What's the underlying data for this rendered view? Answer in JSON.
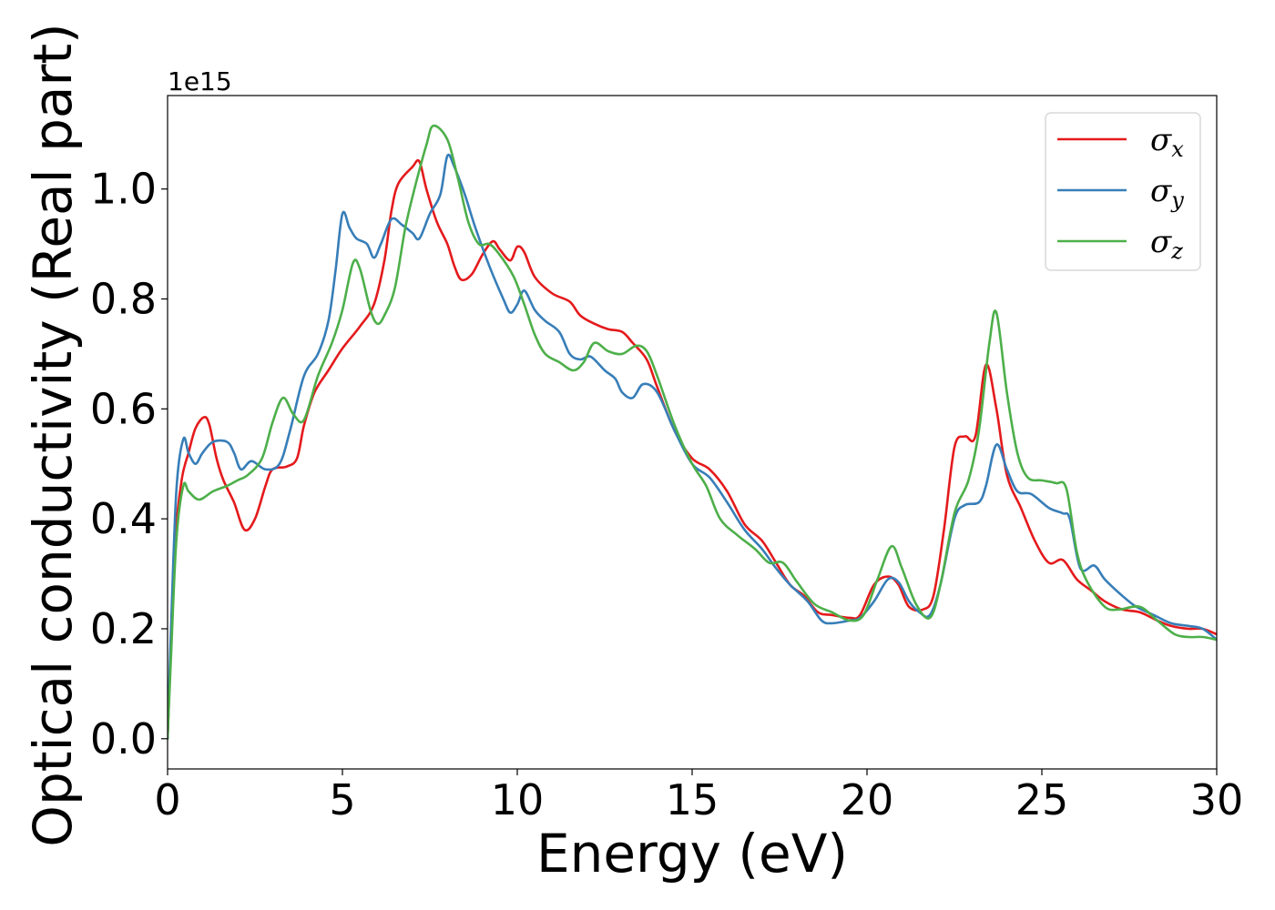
{
  "chart_data": {
    "type": "line",
    "title": "",
    "xlabel": "Energy (eV)",
    "ylabel": "Optical conductivity (Real part)",
    "y_offset_label": "1e15",
    "xlim": [
      0,
      30
    ],
    "ylim": [
      -0.055,
      1.17
    ],
    "x_ticks": [
      0,
      5,
      10,
      15,
      20,
      25,
      30
    ],
    "x_tick_labels": [
      "0",
      "5",
      "10",
      "15",
      "20",
      "25",
      "30"
    ],
    "y_ticks": [
      0.0,
      0.2,
      0.4,
      0.6,
      0.8,
      1.0
    ],
    "y_tick_labels": [
      "0.0",
      "0.2",
      "0.4",
      "0.6",
      "0.8",
      "1.0"
    ],
    "grid": false,
    "legend_position": "top-right",
    "series": [
      {
        "name": "σx",
        "symbol": "σ",
        "subscript": "x",
        "color": "#e41a1c",
        "points": [
          [
            0,
            0
          ],
          [
            0.1,
            0.18
          ],
          [
            0.2,
            0.35
          ],
          [
            0.4,
            0.47
          ],
          [
            0.6,
            0.52
          ],
          [
            0.8,
            0.565
          ],
          [
            1.05,
            0.585
          ],
          [
            1.2,
            0.57
          ],
          [
            1.4,
            0.51
          ],
          [
            1.6,
            0.47
          ],
          [
            1.9,
            0.43
          ],
          [
            2.2,
            0.38
          ],
          [
            2.5,
            0.4
          ],
          [
            2.8,
            0.46
          ],
          [
            3.0,
            0.49
          ],
          [
            3.4,
            0.495
          ],
          [
            3.7,
            0.51
          ],
          [
            3.9,
            0.57
          ],
          [
            4.2,
            0.63
          ],
          [
            4.6,
            0.67
          ],
          [
            5.0,
            0.71
          ],
          [
            5.5,
            0.75
          ],
          [
            5.9,
            0.79
          ],
          [
            6.2,
            0.87
          ],
          [
            6.4,
            0.96
          ],
          [
            6.6,
            1.01
          ],
          [
            7.0,
            1.04
          ],
          [
            7.2,
            1.05
          ],
          [
            7.4,
            1.0
          ],
          [
            7.7,
            0.94
          ],
          [
            8.0,
            0.9
          ],
          [
            8.2,
            0.86
          ],
          [
            8.4,
            0.835
          ],
          [
            8.7,
            0.845
          ],
          [
            9.0,
            0.88
          ],
          [
            9.3,
            0.905
          ],
          [
            9.5,
            0.89
          ],
          [
            9.8,
            0.87
          ],
          [
            10.0,
            0.895
          ],
          [
            10.2,
            0.885
          ],
          [
            10.5,
            0.84
          ],
          [
            11.0,
            0.81
          ],
          [
            11.5,
            0.795
          ],
          [
            11.8,
            0.77
          ],
          [
            12.2,
            0.755
          ],
          [
            12.6,
            0.745
          ],
          [
            13.0,
            0.74
          ],
          [
            13.3,
            0.72
          ],
          [
            13.7,
            0.69
          ],
          [
            14.0,
            0.64
          ],
          [
            14.5,
            0.56
          ],
          [
            15.0,
            0.51
          ],
          [
            15.5,
            0.49
          ],
          [
            16.0,
            0.45
          ],
          [
            16.5,
            0.39
          ],
          [
            17.0,
            0.36
          ],
          [
            17.4,
            0.32
          ],
          [
            17.8,
            0.28
          ],
          [
            18.2,
            0.26
          ],
          [
            18.6,
            0.23
          ],
          [
            19.0,
            0.225
          ],
          [
            19.5,
            0.22
          ],
          [
            19.8,
            0.225
          ],
          [
            20.2,
            0.28
          ],
          [
            20.6,
            0.295
          ],
          [
            20.9,
            0.28
          ],
          [
            21.2,
            0.24
          ],
          [
            21.6,
            0.235
          ],
          [
            21.9,
            0.26
          ],
          [
            22.2,
            0.38
          ],
          [
            22.5,
            0.53
          ],
          [
            22.8,
            0.55
          ],
          [
            23.1,
            0.55
          ],
          [
            23.4,
            0.68
          ],
          [
            23.7,
            0.6
          ],
          [
            24.0,
            0.48
          ],
          [
            24.4,
            0.42
          ],
          [
            24.8,
            0.36
          ],
          [
            25.2,
            0.32
          ],
          [
            25.6,
            0.325
          ],
          [
            26.0,
            0.29
          ],
          [
            26.4,
            0.27
          ],
          [
            26.8,
            0.25
          ],
          [
            27.3,
            0.235
          ],
          [
            27.8,
            0.23
          ],
          [
            28.3,
            0.215
          ],
          [
            28.7,
            0.205
          ],
          [
            29.2,
            0.2
          ],
          [
            29.6,
            0.2
          ],
          [
            30.0,
            0.19
          ]
        ]
      },
      {
        "name": "σy",
        "symbol": "σ",
        "subscript": "y",
        "color": "#377eb8",
        "points": [
          [
            0,
            0
          ],
          [
            0.1,
            0.2
          ],
          [
            0.25,
            0.45
          ],
          [
            0.45,
            0.545
          ],
          [
            0.6,
            0.52
          ],
          [
            0.8,
            0.5
          ],
          [
            1.0,
            0.52
          ],
          [
            1.3,
            0.54
          ],
          [
            1.7,
            0.54
          ],
          [
            1.9,
            0.52
          ],
          [
            2.1,
            0.49
          ],
          [
            2.4,
            0.505
          ],
          [
            2.8,
            0.49
          ],
          [
            3.2,
            0.5
          ],
          [
            3.5,
            0.56
          ],
          [
            3.9,
            0.66
          ],
          [
            4.3,
            0.7
          ],
          [
            4.6,
            0.76
          ],
          [
            4.8,
            0.85
          ],
          [
            5.0,
            0.955
          ],
          [
            5.2,
            0.93
          ],
          [
            5.4,
            0.91
          ],
          [
            5.7,
            0.9
          ],
          [
            5.9,
            0.875
          ],
          [
            6.1,
            0.9
          ],
          [
            6.4,
            0.945
          ],
          [
            6.7,
            0.935
          ],
          [
            7.0,
            0.92
          ],
          [
            7.2,
            0.91
          ],
          [
            7.5,
            0.955
          ],
          [
            7.8,
            0.99
          ],
          [
            8.0,
            1.06
          ],
          [
            8.2,
            1.04
          ],
          [
            8.5,
            0.99
          ],
          [
            8.8,
            0.93
          ],
          [
            9.2,
            0.86
          ],
          [
            9.6,
            0.8
          ],
          [
            9.8,
            0.775
          ],
          [
            10.0,
            0.79
          ],
          [
            10.2,
            0.815
          ],
          [
            10.5,
            0.78
          ],
          [
            10.8,
            0.76
          ],
          [
            11.2,
            0.74
          ],
          [
            11.5,
            0.7
          ],
          [
            11.8,
            0.69
          ],
          [
            12.1,
            0.695
          ],
          [
            12.5,
            0.67
          ],
          [
            12.8,
            0.655
          ],
          [
            13.0,
            0.63
          ],
          [
            13.3,
            0.62
          ],
          [
            13.6,
            0.645
          ],
          [
            14.0,
            0.63
          ],
          [
            14.5,
            0.56
          ],
          [
            15.0,
            0.5
          ],
          [
            15.5,
            0.475
          ],
          [
            16.0,
            0.43
          ],
          [
            16.5,
            0.38
          ],
          [
            17.0,
            0.345
          ],
          [
            17.4,
            0.31
          ],
          [
            17.8,
            0.28
          ],
          [
            18.3,
            0.25
          ],
          [
            18.7,
            0.215
          ],
          [
            19.0,
            0.21
          ],
          [
            19.5,
            0.215
          ],
          [
            19.8,
            0.22
          ],
          [
            20.2,
            0.25
          ],
          [
            20.6,
            0.29
          ],
          [
            20.9,
            0.285
          ],
          [
            21.2,
            0.25
          ],
          [
            21.5,
            0.23
          ],
          [
            21.8,
            0.225
          ],
          [
            22.1,
            0.28
          ],
          [
            22.5,
            0.4
          ],
          [
            22.8,
            0.425
          ],
          [
            23.2,
            0.43
          ],
          [
            23.4,
            0.46
          ],
          [
            23.7,
            0.535
          ],
          [
            24.0,
            0.49
          ],
          [
            24.3,
            0.45
          ],
          [
            24.7,
            0.445
          ],
          [
            25.2,
            0.42
          ],
          [
            25.6,
            0.41
          ],
          [
            25.8,
            0.4
          ],
          [
            26.1,
            0.31
          ],
          [
            26.5,
            0.315
          ],
          [
            26.8,
            0.29
          ],
          [
            27.3,
            0.26
          ],
          [
            27.7,
            0.24
          ],
          [
            28.2,
            0.225
          ],
          [
            28.7,
            0.21
          ],
          [
            29.2,
            0.205
          ],
          [
            29.6,
            0.2
          ],
          [
            30.0,
            0.18
          ]
        ]
      },
      {
        "name": "σz",
        "symbol": "σ",
        "subscript": "z",
        "color": "#4daf4a",
        "points": [
          [
            0,
            0
          ],
          [
            0.1,
            0.15
          ],
          [
            0.25,
            0.36
          ],
          [
            0.45,
            0.46
          ],
          [
            0.6,
            0.45
          ],
          [
            0.9,
            0.435
          ],
          [
            1.3,
            0.45
          ],
          [
            1.7,
            0.46
          ],
          [
            2.0,
            0.47
          ],
          [
            2.3,
            0.48
          ],
          [
            2.7,
            0.51
          ],
          [
            3.0,
            0.575
          ],
          [
            3.3,
            0.62
          ],
          [
            3.6,
            0.59
          ],
          [
            3.9,
            0.58
          ],
          [
            4.3,
            0.66
          ],
          [
            4.7,
            0.72
          ],
          [
            5.0,
            0.78
          ],
          [
            5.3,
            0.865
          ],
          [
            5.5,
            0.855
          ],
          [
            5.8,
            0.78
          ],
          [
            6.0,
            0.755
          ],
          [
            6.2,
            0.77
          ],
          [
            6.5,
            0.82
          ],
          [
            6.8,
            0.93
          ],
          [
            7.1,
            1.01
          ],
          [
            7.4,
            1.08
          ],
          [
            7.6,
            1.115
          ],
          [
            8.0,
            1.09
          ],
          [
            8.3,
            1.02
          ],
          [
            8.6,
            0.94
          ],
          [
            8.9,
            0.9
          ],
          [
            9.2,
            0.9
          ],
          [
            9.5,
            0.88
          ],
          [
            9.9,
            0.84
          ],
          [
            10.2,
            0.79
          ],
          [
            10.5,
            0.735
          ],
          [
            10.8,
            0.7
          ],
          [
            11.2,
            0.685
          ],
          [
            11.6,
            0.67
          ],
          [
            11.9,
            0.685
          ],
          [
            12.2,
            0.72
          ],
          [
            12.6,
            0.705
          ],
          [
            13.0,
            0.7
          ],
          [
            13.4,
            0.715
          ],
          [
            13.7,
            0.705
          ],
          [
            14.0,
            0.66
          ],
          [
            14.5,
            0.57
          ],
          [
            15.0,
            0.5
          ],
          [
            15.4,
            0.46
          ],
          [
            15.8,
            0.4
          ],
          [
            16.3,
            0.37
          ],
          [
            16.8,
            0.345
          ],
          [
            17.2,
            0.32
          ],
          [
            17.6,
            0.32
          ],
          [
            18.0,
            0.285
          ],
          [
            18.5,
            0.245
          ],
          [
            19.0,
            0.23
          ],
          [
            19.5,
            0.215
          ],
          [
            19.9,
            0.225
          ],
          [
            20.3,
            0.29
          ],
          [
            20.7,
            0.35
          ],
          [
            21.0,
            0.31
          ],
          [
            21.4,
            0.245
          ],
          [
            21.8,
            0.22
          ],
          [
            22.1,
            0.28
          ],
          [
            22.5,
            0.41
          ],
          [
            22.9,
            0.47
          ],
          [
            23.2,
            0.56
          ],
          [
            23.5,
            0.72
          ],
          [
            23.7,
            0.775
          ],
          [
            24.0,
            0.63
          ],
          [
            24.3,
            0.52
          ],
          [
            24.6,
            0.475
          ],
          [
            25.0,
            0.47
          ],
          [
            25.4,
            0.465
          ],
          [
            25.7,
            0.455
          ],
          [
            26.0,
            0.34
          ],
          [
            26.3,
            0.285
          ],
          [
            26.8,
            0.24
          ],
          [
            27.2,
            0.235
          ],
          [
            27.8,
            0.24
          ],
          [
            28.3,
            0.215
          ],
          [
            28.8,
            0.19
          ],
          [
            29.2,
            0.185
          ],
          [
            29.6,
            0.185
          ],
          [
            30.0,
            0.18
          ]
        ]
      }
    ]
  }
}
